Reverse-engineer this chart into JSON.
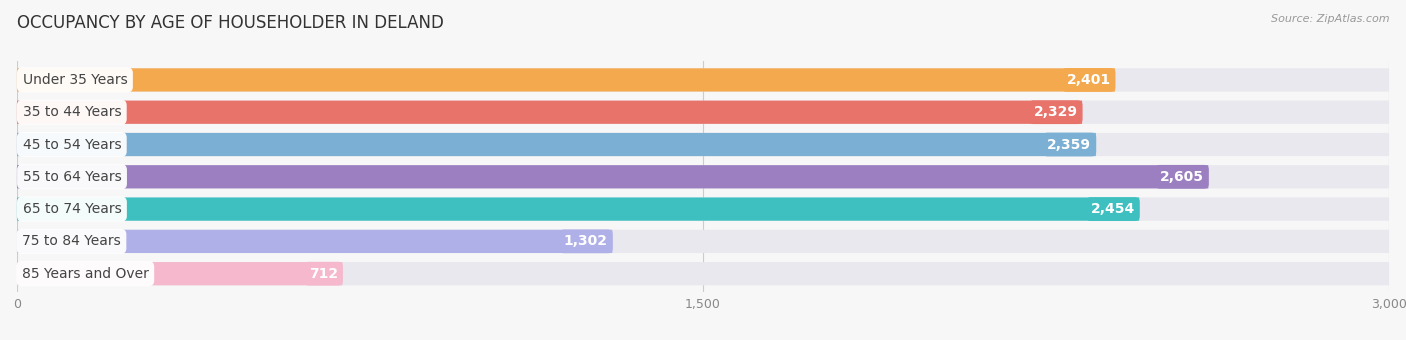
{
  "title": "OCCUPANCY BY AGE OF HOUSEHOLDER IN DELAND",
  "source": "Source: ZipAtlas.com",
  "categories": [
    "Under 35 Years",
    "35 to 44 Years",
    "45 to 54 Years",
    "55 to 64 Years",
    "65 to 74 Years",
    "75 to 84 Years",
    "85 Years and Over"
  ],
  "values": [
    2401,
    2329,
    2359,
    2605,
    2454,
    1302,
    712
  ],
  "bar_colors": [
    "#f5a94e",
    "#e8736a",
    "#7bafd4",
    "#9b7fc0",
    "#3ec0c0",
    "#b0b0e8",
    "#f5b8cc"
  ],
  "bar_bg_color": "#e8e8ee",
  "background_color": "#f7f7f7",
  "xlim": [
    0,
    3000
  ],
  "xticks": [
    0,
    1500,
    3000
  ],
  "xtick_labels": [
    "0",
    "1,500",
    "3,000"
  ],
  "title_fontsize": 12,
  "label_fontsize": 10,
  "value_fontsize": 10,
  "bar_height": 0.72,
  "value_color_light": "#ffffff",
  "value_color_dark": "#555555"
}
